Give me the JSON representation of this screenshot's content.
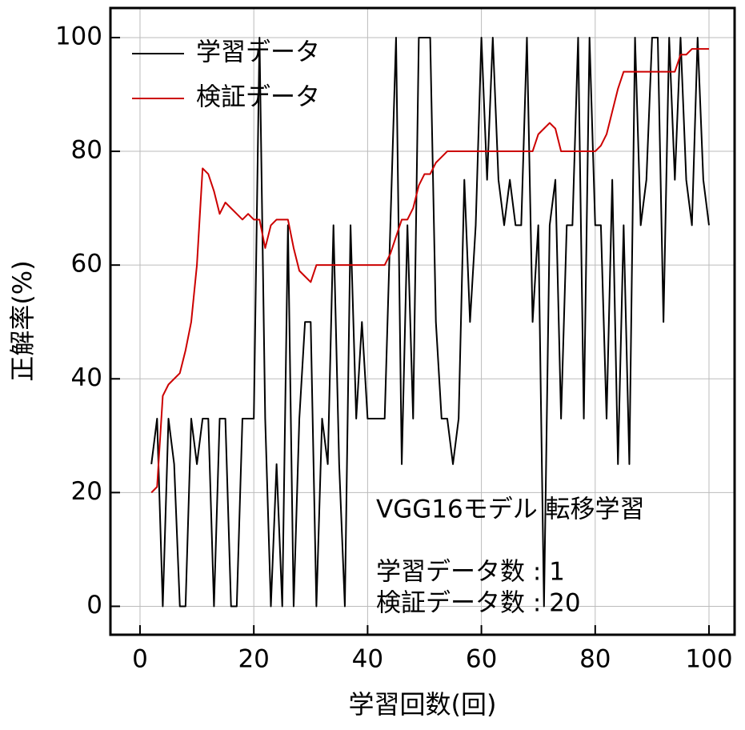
{
  "chart_data": {
    "type": "line",
    "xlabel": "学習回数(回)",
    "ylabel": "正解率(%)",
    "annotations": [
      "VGG16モデル 転移学習",
      "学習データ数 : 1",
      "検証データ数 : 20"
    ],
    "x": [
      2,
      3,
      4,
      5,
      6,
      7,
      8,
      9,
      10,
      11,
      12,
      13,
      14,
      15,
      16,
      17,
      18,
      19,
      20,
      21,
      22,
      23,
      24,
      25,
      26,
      27,
      28,
      29,
      30,
      31,
      32,
      33,
      34,
      35,
      36,
      37,
      38,
      39,
      40,
      41,
      42,
      43,
      44,
      45,
      46,
      47,
      48,
      49,
      50,
      51,
      52,
      53,
      54,
      55,
      56,
      57,
      58,
      59,
      60,
      61,
      62,
      63,
      64,
      65,
      66,
      67,
      68,
      69,
      70,
      71,
      72,
      73,
      74,
      75,
      76,
      77,
      78,
      79,
      80,
      81,
      82,
      83,
      84,
      85,
      86,
      87,
      88,
      89,
      90,
      91,
      92,
      93,
      94,
      95,
      96,
      97,
      98,
      99,
      100
    ],
    "series": [
      {
        "name": "学習データ",
        "color": "#000000",
        "values": [
          25,
          33,
          0,
          33,
          25,
          0,
          0,
          33,
          25,
          33,
          33,
          0,
          33,
          33,
          0,
          0,
          33,
          33,
          33,
          100,
          33,
          0,
          25,
          0,
          67,
          0,
          33,
          50,
          50,
          0,
          33,
          25,
          67,
          25,
          0,
          67,
          33,
          50,
          33,
          33,
          33,
          33,
          67,
          100,
          25,
          67,
          33,
          100,
          100,
          100,
          50,
          33,
          33,
          25,
          33,
          75,
          50,
          67,
          100,
          75,
          100,
          75,
          67,
          75,
          67,
          67,
          100,
          50,
          67,
          0,
          67,
          75,
          33,
          67,
          67,
          100,
          33,
          100,
          67,
          67,
          33,
          75,
          25,
          67,
          25,
          100,
          67,
          75,
          100,
          100,
          50,
          100,
          75,
          100,
          75,
          67,
          100,
          75,
          67
        ]
      },
      {
        "name": "検証データ",
        "color": "#cc0000",
        "values": [
          20,
          21,
          37,
          39,
          40,
          41,
          45,
          50,
          60,
          77,
          76,
          73,
          69,
          71,
          70,
          69,
          68,
          69,
          68,
          68,
          63,
          67,
          68,
          68,
          68,
          63,
          59,
          58,
          57,
          60,
          60,
          60,
          60,
          60,
          60,
          60,
          60,
          60,
          60,
          60,
          60,
          60,
          62,
          65,
          68,
          68,
          70,
          74,
          76,
          76,
          78,
          79,
          80,
          80,
          80,
          80,
          80,
          80,
          80,
          80,
          80,
          80,
          80,
          80,
          80,
          80,
          80,
          80,
          83,
          84,
          85,
          84,
          80,
          80,
          80,
          80,
          80,
          80,
          80,
          81,
          83,
          87,
          91,
          94,
          94,
          94,
          94,
          94,
          94,
          94,
          94,
          94,
          94,
          97,
          97,
          98,
          98,
          98,
          98
        ]
      }
    ],
    "xlim": [
      -5.2,
      104.5
    ],
    "ylim": [
      -5,
      105.2
    ],
    "xticks": [
      0,
      20,
      40,
      60,
      80,
      100
    ],
    "yticks": [
      0,
      20,
      40,
      60,
      80,
      100
    ],
    "grid": true,
    "legend": "upper left"
  }
}
